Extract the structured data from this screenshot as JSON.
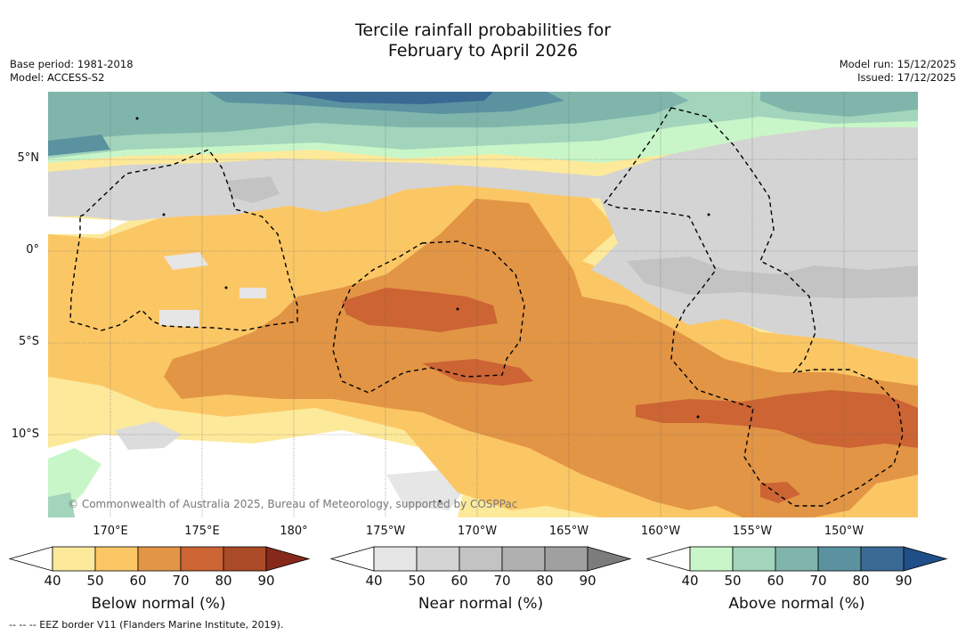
{
  "header": {
    "title_line1": "Tercile rainfall probabilities for",
    "title_line2": "February to April 2026",
    "base_period": "Base period: 1981-2018",
    "model": "Model: ACCESS-S2",
    "model_run": "Model run: 15/12/2025",
    "issued": "Issued: 17/12/2025"
  },
  "map": {
    "lat_labels": [
      "5°N",
      "0°",
      "5°S",
      "10°S"
    ],
    "lon_labels": [
      "170°E",
      "175°E",
      "180°",
      "175°W",
      "170°W",
      "165°W",
      "160°W",
      "155°W",
      "150°W"
    ],
    "copyright": "© Commonwealth of Australia 2025, Bureau of Meteorology, supported by COSPPac"
  },
  "legend": {
    "below": {
      "title": "Below normal (%)",
      "ticks": [
        "40",
        "50",
        "60",
        "70",
        "80",
        "90"
      ],
      "colors": [
        "#ffffff",
        "#fde99a",
        "#fbc765",
        "#e29545",
        "#cc6434",
        "#ab4a26",
        "#86291b"
      ]
    },
    "near": {
      "title": "Near normal (%)",
      "ticks": [
        "40",
        "50",
        "60",
        "70",
        "80",
        "90"
      ],
      "colors": [
        "#ffffff",
        "#e6e6e6",
        "#d4d4d4",
        "#c3c3c3",
        "#b0b0b0",
        "#a0a0a0",
        "#7c7c7c"
      ]
    },
    "above": {
      "title": "Above normal (%)",
      "ticks": [
        "40",
        "50",
        "60",
        "70",
        "80",
        "90"
      ],
      "colors": [
        "#ffffff",
        "#c8f6c9",
        "#a2d5bb",
        "#80b5ac",
        "#5a92a0",
        "#3a6994",
        "#1f4e89"
      ]
    }
  },
  "footnote": "--  --  -- EEZ border V11 (Flanders Marine Institute, 2019)."
}
